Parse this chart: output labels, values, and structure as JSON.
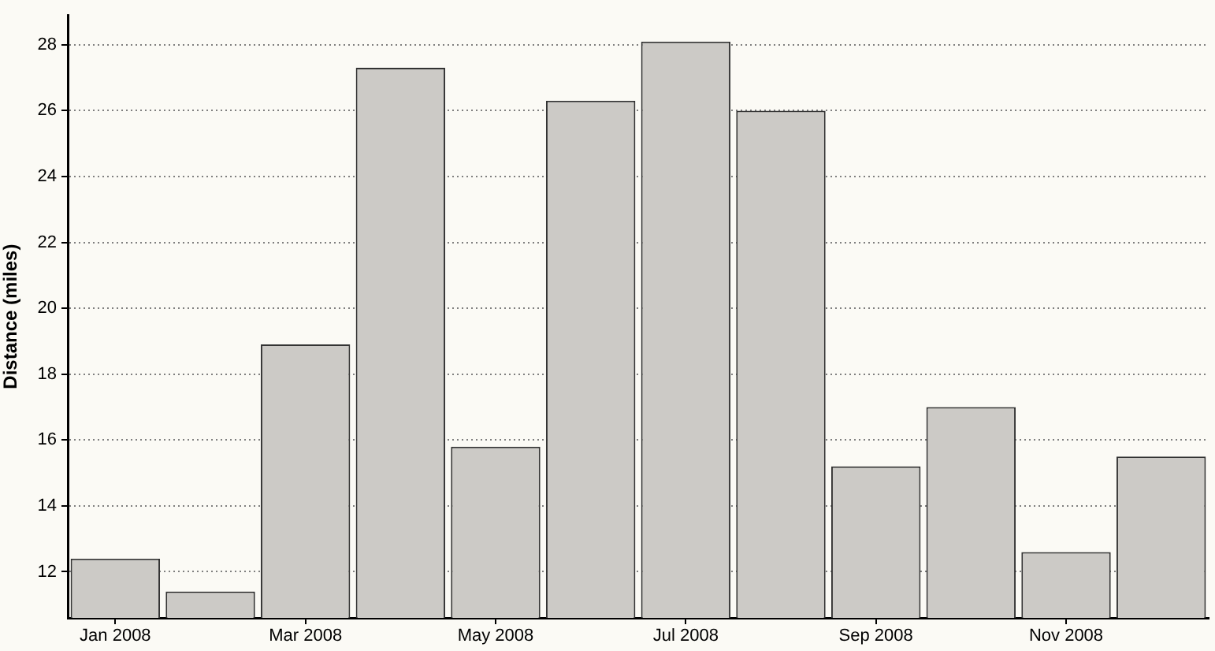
{
  "chart_data": {
    "type": "bar",
    "ylabel": "Distance (miles)",
    "categories": [
      "Jan 2008",
      null,
      "Mar 2008",
      null,
      "May 2008",
      null,
      "Jul 2008",
      null,
      "Sep 2008",
      null,
      "Nov 2008",
      null
    ],
    "values": [
      12.4,
      11.4,
      18.9,
      27.3,
      15.8,
      26.3,
      28.1,
      26.0,
      15.2,
      17.0,
      12.6,
      15.5
    ],
    "color": "#cccac6",
    "ylim": [
      10.6,
      28.9
    ],
    "yticks": [
      12,
      14,
      16,
      18,
      20,
      22,
      24,
      26,
      28
    ],
    "grid": "y"
  }
}
